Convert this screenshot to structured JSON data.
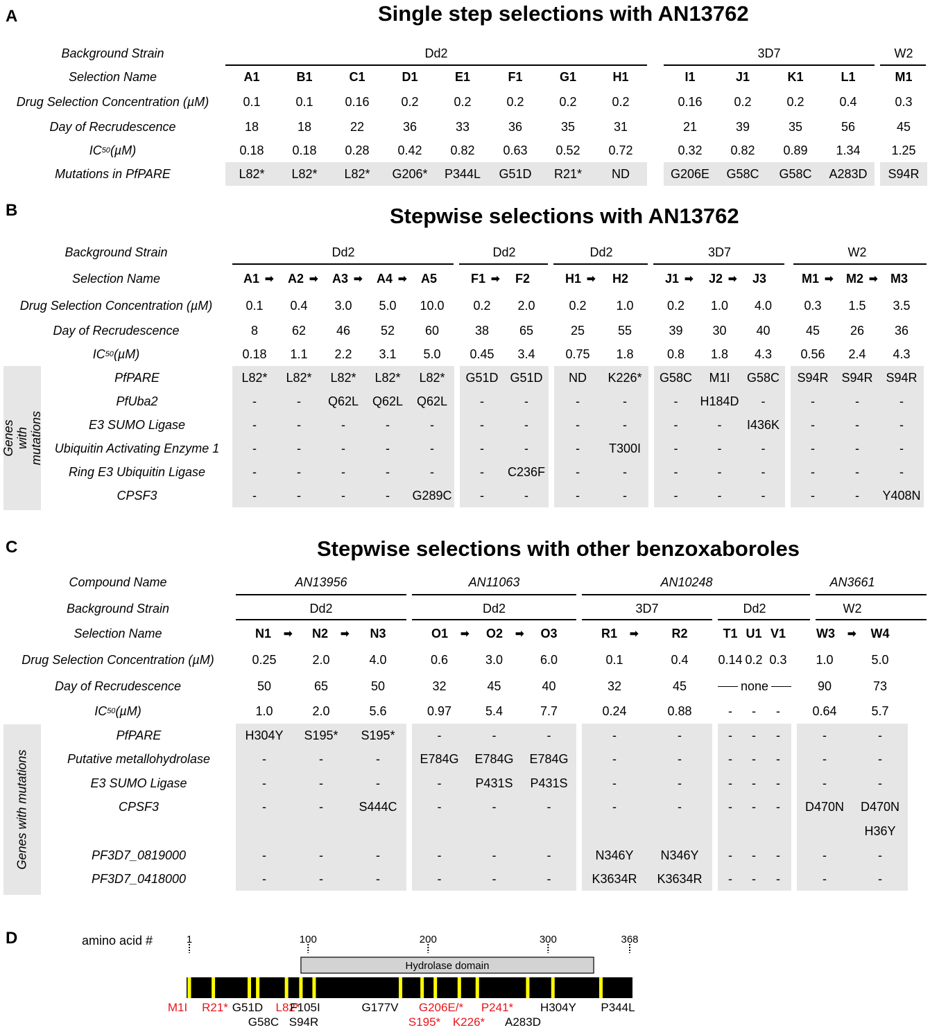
{
  "panel_a": {
    "label": "A",
    "title": "Single step selections with AN13762",
    "row_labels": [
      "Background Strain",
      "Selection Name",
      "Drug Selection Concentration (µM)",
      "Day of Recrudescence",
      "IC50 (µM)",
      "Mutations in PfPARE"
    ],
    "ic50_main": "IC",
    "ic50_sub": "50",
    "ic50_rest": " (µM)",
    "strains": [
      "Dd2",
      "3D7",
      "W2"
    ],
    "selections": [
      "A1",
      "B1",
      "C1",
      "D1",
      "E1",
      "F1",
      "G1",
      "H1",
      "I1",
      "J1",
      "K1",
      "L1",
      "M1"
    ],
    "concentrations": [
      "0.1",
      "0.1",
      "0.16",
      "0.2",
      "0.2",
      "0.2",
      "0.2",
      "0.2",
      "0.16",
      "0.2",
      "0.2",
      "0.4",
      "0.3"
    ],
    "days": [
      "18",
      "18",
      "22",
      "36",
      "33",
      "36",
      "35",
      "31",
      "21",
      "39",
      "35",
      "56",
      "45"
    ],
    "ic50": [
      "0.18",
      "0.18",
      "0.28",
      "0.42",
      "0.82",
      "0.63",
      "0.52",
      "0.72",
      "0.32",
      "0.82",
      "0.89",
      "1.34",
      "1.25"
    ],
    "mutations": [
      "L82*",
      "L82*",
      "L82*",
      "G206*",
      "P344L",
      "G51D",
      "R21*",
      "ND",
      "G206E",
      "G58C",
      "G58C",
      "A283D",
      "S94R"
    ]
  },
  "panel_b": {
    "label": "B",
    "title": "Stepwise selections with AN13762",
    "row_labels": [
      "Background Strain",
      "Selection Name",
      "Drug Selection Concentration (µM)",
      "Day of Recrudescence"
    ],
    "genes_label": "Genes with mutations",
    "strains": [
      "Dd2",
      "Dd2",
      "Dd2",
      "3D7",
      "W2"
    ],
    "selections": [
      "A1",
      "A2",
      "A3",
      "A4",
      "A5",
      "F1",
      "F2",
      "H1",
      "H2",
      "J1",
      "J2",
      "J3",
      "M1",
      "M2",
      "M3"
    ],
    "concentrations": [
      "0.1",
      "0.4",
      "3.0",
      "5.0",
      "10.0",
      "0.2",
      "2.0",
      "0.2",
      "1.0",
      "0.2",
      "1.0",
      "4.0",
      "0.3",
      "1.5",
      "3.5"
    ],
    "days": [
      "8",
      "62",
      "46",
      "52",
      "60",
      "38",
      "65",
      "25",
      "55",
      "39",
      "30",
      "40",
      "45",
      "26",
      "36"
    ],
    "ic50": [
      "0.18",
      "1.1",
      "2.2",
      "3.1",
      "5.0",
      "0.45",
      "3.4",
      "0.75",
      "1.8",
      "0.8",
      "1.8",
      "4.3",
      "0.56",
      "2.4",
      "4.3"
    ],
    "genes": [
      {
        "name": "PfPARE",
        "values": [
          "L82*",
          "L82*",
          "L82*",
          "L82*",
          "L82*",
          "G51D",
          "G51D",
          "ND",
          "K226*",
          "G58C",
          "M1I",
          "G58C",
          "S94R",
          "S94R",
          "S94R"
        ]
      },
      {
        "name": "PfUba2",
        "values": [
          "-",
          "-",
          "Q62L",
          "Q62L",
          "Q62L",
          "-",
          "-",
          "-",
          "-",
          "-",
          "H184D",
          "-",
          "-",
          "-",
          "-"
        ]
      },
      {
        "name": "E3 SUMO Ligase",
        "values": [
          "-",
          "-",
          "-",
          "-",
          "-",
          "-",
          "-",
          "-",
          "-",
          "-",
          "-",
          "I436K",
          "-",
          "-",
          "-"
        ]
      },
      {
        "name": "Ubiquitin Activating Enzyme 1",
        "values": [
          "-",
          "-",
          "-",
          "-",
          "-",
          "-",
          "-",
          "-",
          "T300I",
          "-",
          "-",
          "-",
          "-",
          "-",
          "-"
        ]
      },
      {
        "name": "Ring E3 Ubiquitin Ligase",
        "values": [
          "-",
          "-",
          "-",
          "-",
          "-",
          "-",
          "C236F",
          "-",
          "-",
          "-",
          "-",
          "-",
          "-",
          "-",
          "-"
        ]
      },
      {
        "name": "CPSF3",
        "values": [
          "-",
          "-",
          "-",
          "-",
          "G289C",
          "-",
          "-",
          "-",
          "-",
          "-",
          "-",
          "-",
          "-",
          "-",
          "Y408N"
        ]
      }
    ]
  },
  "panel_c": {
    "label": "C",
    "title": "Stepwise selections with other benzoxaboroles",
    "row_labels": [
      "Compound Name",
      "Background Strain",
      "Selection Name",
      "Drug Selection Concentration (µM)",
      "Day of Recrudescence"
    ],
    "genes_label": "Genes with mutations",
    "compounds": [
      "AN13956",
      "AN11063",
      "AN10248",
      "AN3661"
    ],
    "strains": [
      "Dd2",
      "Dd2",
      "3D7",
      "Dd2",
      "W2"
    ],
    "selections": [
      "N1",
      "N2",
      "N3",
      "O1",
      "O2",
      "O3",
      "R1",
      "R2",
      "T1",
      "U1",
      "V1",
      "W3",
      "W4"
    ],
    "concentrations": [
      "0.25",
      "2.0",
      "4.0",
      "0.6",
      "3.0",
      "6.0",
      "0.1",
      "0.4",
      "0.14",
      "0.2",
      "0.3",
      "1.0",
      "5.0"
    ],
    "days": [
      "50",
      "65",
      "50",
      "32",
      "45",
      "40",
      "32",
      "45",
      "",
      "",
      "",
      "90",
      "73"
    ],
    "days_none": "none",
    "ic50": [
      "1.0",
      "2.0",
      "5.6",
      "0.97",
      "5.4",
      "7.7",
      "0.24",
      "0.88",
      "-",
      "-",
      "-",
      "0.64",
      "5.7"
    ],
    "genes": [
      {
        "name": "PfPARE",
        "values": [
          "H304Y",
          "S195*",
          "S195*",
          "-",
          "-",
          "-",
          "-",
          "-",
          "-",
          "-",
          "-",
          "-",
          "-"
        ]
      },
      {
        "name": "Putative metallohydrolase",
        "values": [
          "-",
          "-",
          "-",
          "E784G",
          "E784G",
          "E784G",
          "-",
          "-",
          "-",
          "-",
          "-",
          "-",
          "-"
        ]
      },
      {
        "name": "E3 SUMO Ligase",
        "values": [
          "-",
          "-",
          "-",
          "-",
          "P431S",
          "P431S",
          "-",
          "-",
          "-",
          "-",
          "-",
          "-",
          "-"
        ]
      },
      {
        "name": "CPSF3",
        "values": [
          "-",
          "-",
          "S444C",
          "-",
          "-",
          "-",
          "-",
          "-",
          "-",
          "-",
          "-",
          "D470N",
          "D470N"
        ]
      },
      {
        "name": "",
        "values": [
          "",
          "",
          "",
          "",
          "",
          "",
          "",
          "",
          "",
          "",
          "",
          "",
          "H36Y"
        ]
      },
      {
        "name": "PF3D7_0819000",
        "values": [
          "-",
          "-",
          "-",
          "-",
          "-",
          "-",
          "N346Y",
          "N346Y",
          "-",
          "-",
          "-",
          "-",
          "-"
        ]
      },
      {
        "name": "PF3D7_0418000",
        "values": [
          "-",
          "-",
          "-",
          "-",
          "-",
          "-",
          "K3634R",
          "K3634R",
          "-",
          "-",
          "-",
          "-",
          "-"
        ]
      }
    ]
  },
  "panel_d": {
    "label": "D",
    "axis_label": "amino acid #",
    "length": 368,
    "ticks": [
      1,
      100,
      200,
      300,
      368
    ],
    "domain": {
      "label": "Hydrolase domain",
      "start": 94,
      "end": 338
    },
    "colors": {
      "bar": "#000000",
      "mark": "#ffff00",
      "domain": "#d3d3d3",
      "red": "#e8141c",
      "black": "#000000"
    },
    "mutation_positions": [
      1,
      21,
      51,
      58,
      82,
      94,
      105,
      177,
      195,
      206,
      226,
      241,
      283,
      304,
      344
    ],
    "labels_row1": [
      {
        "text": "M1I",
        "color": "red"
      },
      {
        "text": "R21*",
        "color": "red"
      },
      {
        "text": "G51D",
        "color": "black"
      },
      {
        "text": "L82*",
        "color": "red"
      },
      {
        "text": "F105I",
        "color": "black"
      },
      {
        "text": "G177V",
        "color": "black"
      },
      {
        "text": "G206E/*",
        "color": "red"
      },
      {
        "text": "P241*",
        "color": "red"
      },
      {
        "text": "H304Y",
        "color": "black"
      },
      {
        "text": "P344L",
        "color": "black"
      }
    ],
    "labels_row2": [
      {
        "text": "G58C",
        "color": "black"
      },
      {
        "text": "S94R",
        "color": "black"
      },
      {
        "text": "S195*",
        "color": "red"
      },
      {
        "text": "K226*",
        "color": "red"
      },
      {
        "text": "A283D",
        "color": "black"
      }
    ]
  }
}
